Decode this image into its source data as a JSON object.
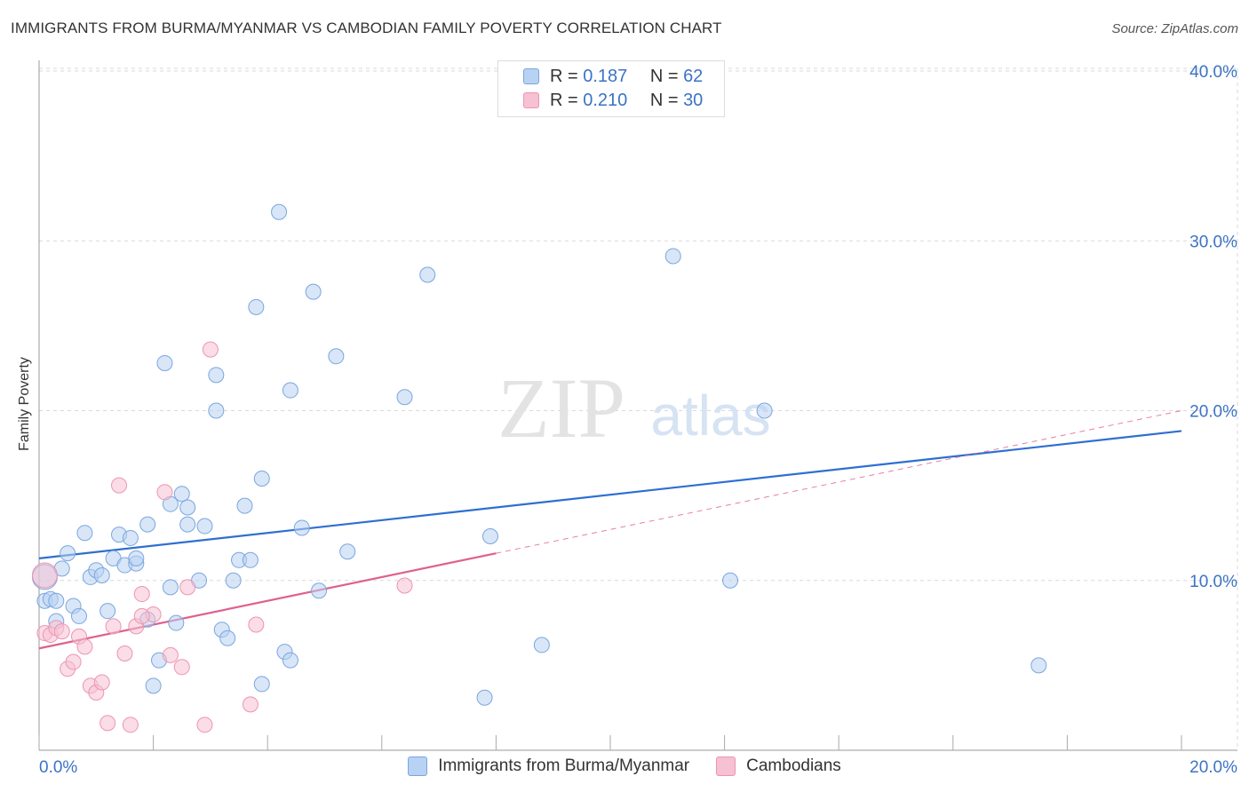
{
  "title": "IMMIGRANTS FROM BURMA/MYANMAR VS CAMBODIAN FAMILY POVERTY CORRELATION CHART",
  "source": "Source: ZipAtlas.com",
  "watermark": {
    "zip": "ZIP",
    "atlas": "atlas"
  },
  "legend": {
    "rows": [
      {
        "r_label": "R =",
        "r_value": "0.187",
        "n_label": "N =",
        "n_value": "62"
      },
      {
        "r_label": "R =",
        "r_value": "0.210",
        "n_label": "N =",
        "n_value": "30"
      }
    ]
  },
  "colors": {
    "blue_fill": "#b8d2f3",
    "blue_stroke": "#7aa6de",
    "blue_line": "#2f6fd0",
    "pink_fill": "#f6c1d2",
    "pink_stroke": "#ee94b1",
    "pink_line": "#e0608c",
    "accent_text": "#3b73c4",
    "grid": "#d9d9d9"
  },
  "chart_data": {
    "type": "scatter",
    "title": "IMMIGRANTS FROM BURMA/MYANMAR VS CAMBODIAN FAMILY POVERTY CORRELATION CHART",
    "xlabel": "",
    "ylabel": "Family Poverty",
    "xlim": [
      0,
      20
    ],
    "ylim": [
      0,
      40
    ],
    "x_ticks": [
      "0.0%",
      "20.0%"
    ],
    "y_ticks": [
      "10.0%",
      "20.0%",
      "30.0%",
      "40.0%"
    ],
    "y_tick_values": [
      10,
      20,
      30,
      40
    ],
    "grid": true,
    "legend_placement": "top-center",
    "series": [
      {
        "name": "Immigrants from Burma/Myanmar",
        "color": "blue",
        "points": [
          [
            0.1,
            10.2
          ],
          [
            0.1,
            8.8
          ],
          [
            0.2,
            8.9
          ],
          [
            0.3,
            7.6
          ],
          [
            0.3,
            8.8
          ],
          [
            0.4,
            10.7
          ],
          [
            0.5,
            11.6
          ],
          [
            0.6,
            8.5
          ],
          [
            0.7,
            7.9
          ],
          [
            0.8,
            12.8
          ],
          [
            0.9,
            10.2
          ],
          [
            1.0,
            10.6
          ],
          [
            1.1,
            10.3
          ],
          [
            1.2,
            8.2
          ],
          [
            1.3,
            11.3
          ],
          [
            1.4,
            12.7
          ],
          [
            1.5,
            10.9
          ],
          [
            1.6,
            12.5
          ],
          [
            1.7,
            11.0
          ],
          [
            1.7,
            11.3
          ],
          [
            1.9,
            7.7
          ],
          [
            1.9,
            13.3
          ],
          [
            2.0,
            3.8
          ],
          [
            2.1,
            5.3
          ],
          [
            2.2,
            22.8
          ],
          [
            2.3,
            9.6
          ],
          [
            2.3,
            14.5
          ],
          [
            2.4,
            7.5
          ],
          [
            2.5,
            15.1
          ],
          [
            2.6,
            14.3
          ],
          [
            2.6,
            13.3
          ],
          [
            2.8,
            10.0
          ],
          [
            2.9,
            13.2
          ],
          [
            3.1,
            22.1
          ],
          [
            3.1,
            20.0
          ],
          [
            3.2,
            7.1
          ],
          [
            3.3,
            6.6
          ],
          [
            3.4,
            10.0
          ],
          [
            3.5,
            11.2
          ],
          [
            3.6,
            14.4
          ],
          [
            3.7,
            11.2
          ],
          [
            3.8,
            26.1
          ],
          [
            3.9,
            16.0
          ],
          [
            3.9,
            3.9
          ],
          [
            4.2,
            31.7
          ],
          [
            4.3,
            5.8
          ],
          [
            4.4,
            21.2
          ],
          [
            4.4,
            5.3
          ],
          [
            4.6,
            13.1
          ],
          [
            4.8,
            27.0
          ],
          [
            4.9,
            9.4
          ],
          [
            5.2,
            23.2
          ],
          [
            5.4,
            11.7
          ],
          [
            6.4,
            20.8
          ],
          [
            6.8,
            28.0
          ],
          [
            7.8,
            3.1
          ],
          [
            7.9,
            12.6
          ],
          [
            8.8,
            6.2
          ],
          [
            11.1,
            29.1
          ],
          [
            12.1,
            10.0
          ],
          [
            12.7,
            20.0
          ],
          [
            17.5,
            5.0
          ]
        ]
      },
      {
        "name": "Cambodians",
        "color": "pink",
        "points": [
          [
            0.1,
            10.3
          ],
          [
            0.1,
            6.9
          ],
          [
            0.2,
            6.8
          ],
          [
            0.3,
            7.2
          ],
          [
            0.4,
            7.0
          ],
          [
            0.5,
            4.8
          ],
          [
            0.6,
            5.2
          ],
          [
            0.7,
            6.7
          ],
          [
            0.8,
            6.1
          ],
          [
            0.9,
            3.8
          ],
          [
            1.0,
            3.4
          ],
          [
            1.1,
            4.0
          ],
          [
            1.2,
            1.6
          ],
          [
            1.3,
            7.3
          ],
          [
            1.4,
            15.6
          ],
          [
            1.5,
            5.7
          ],
          [
            1.6,
            1.5
          ],
          [
            1.7,
            7.3
          ],
          [
            1.8,
            9.2
          ],
          [
            2.0,
            8.0
          ],
          [
            2.2,
            15.2
          ],
          [
            2.3,
            5.6
          ],
          [
            2.5,
            4.9
          ],
          [
            2.6,
            9.6
          ],
          [
            2.9,
            1.5
          ],
          [
            3.0,
            23.6
          ],
          [
            3.7,
            2.7
          ],
          [
            3.8,
            7.4
          ],
          [
            6.4,
            9.7
          ],
          [
            1.8,
            7.9
          ]
        ]
      }
    ],
    "trendlines": [
      {
        "series": "Immigrants from Burma/Myanmar",
        "x": [
          0,
          20
        ],
        "y": [
          11.3,
          18.8
        ],
        "style": "solid"
      },
      {
        "series": "Cambodians",
        "x": [
          0,
          8.0
        ],
        "y": [
          6.0,
          11.6
        ],
        "style": "solid"
      },
      {
        "series": "Cambodians",
        "x": [
          8.0,
          20
        ],
        "y": [
          11.6,
          20.0
        ],
        "style": "dashed"
      }
    ]
  },
  "bottom_legend": [
    {
      "label": "Immigrants from Burma/Myanmar"
    },
    {
      "label": "Cambodians"
    }
  ]
}
